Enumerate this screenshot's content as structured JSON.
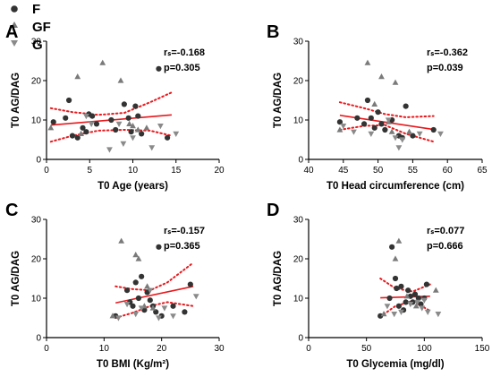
{
  "legend": [
    {
      "label": "F",
      "marker": "circle",
      "color": "#333333"
    },
    {
      "label": "GF",
      "marker": "triangle-up",
      "color": "#7a7a7a"
    },
    {
      "label": "G",
      "marker": "triangle-down",
      "color": "#8a8a8a"
    }
  ],
  "colors": {
    "fit_line": "#e8191d",
    "circle": "#333333",
    "triangle_up": "#7a7a7a",
    "triangle_down": "#8a8a8a"
  },
  "chart_data": [
    {
      "panel": "A",
      "type": "scatter",
      "xlabel": "T0 Age (years)",
      "ylabel": "T0 AG/DAG",
      "xlim": [
        0,
        20
      ],
      "ylim": [
        0,
        30
      ],
      "xticks": [
        0,
        5,
        10,
        15,
        20
      ],
      "yticks": [
        0,
        10,
        20,
        30
      ],
      "stat_rs": "rₛ=-0.168",
      "stat_p": "p=0.305",
      "series": [
        {
          "name": "F",
          "marker": "circle",
          "points": [
            [
              0.8,
              9.5
            ],
            [
              2.2,
              10.5
            ],
            [
              2.6,
              15
            ],
            [
              3,
              6
            ],
            [
              3.6,
              5.5
            ],
            [
              4.2,
              8
            ],
            [
              4.6,
              7
            ],
            [
              4.9,
              11.5
            ],
            [
              5.3,
              11
            ],
            [
              5.8,
              9
            ],
            [
              7.5,
              10
            ],
            [
              8,
              7.5
            ],
            [
              9,
              14
            ],
            [
              9.5,
              10.5
            ],
            [
              9.8,
              7
            ],
            [
              10.3,
              13.5
            ],
            [
              10.6,
              11
            ],
            [
              11,
              6.5
            ],
            [
              13,
              23
            ],
            [
              14,
              5.5
            ]
          ]
        },
        {
          "name": "GF",
          "marker": "triangle-up",
          "points": [
            [
              0.5,
              8
            ],
            [
              3.6,
              21
            ],
            [
              4,
              6.5
            ],
            [
              6.5,
              24.5
            ],
            [
              8.6,
              20
            ],
            [
              9.6,
              9
            ],
            [
              10,
              8.5
            ],
            [
              10.6,
              7.5
            ],
            [
              11.6,
              8
            ]
          ]
        },
        {
          "name": "G",
          "marker": "triangle-down",
          "points": [
            [
              4.6,
              11
            ],
            [
              5.2,
              9
            ],
            [
              7.3,
              2.5
            ],
            [
              8.4,
              9
            ],
            [
              8.9,
              4
            ],
            [
              10,
              5.5
            ],
            [
              12.2,
              3
            ],
            [
              13.2,
              8.5
            ],
            [
              15,
              6.5
            ]
          ]
        }
      ],
      "fit": {
        "x": [
          0.5,
          14.5
        ],
        "y": [
          8.7,
          11.3
        ]
      },
      "ci_upper": {
        "x": [
          0.5,
          3,
          6,
          9,
          12,
          14.5
        ],
        "y": [
          13,
          12,
          11.3,
          11.8,
          14.5,
          17
        ]
      },
      "ci_lower": {
        "x": [
          0.5,
          3,
          6,
          9,
          12,
          14.5
        ],
        "y": [
          4.5,
          6,
          7.3,
          7.5,
          7.3,
          6
        ]
      }
    },
    {
      "panel": "B",
      "type": "scatter",
      "xlabel": "T0 Head circumference (cm)",
      "ylabel": "T0 AG/DAG",
      "xlim": [
        40,
        65
      ],
      "ylim": [
        0,
        30
      ],
      "xticks": [
        40,
        45,
        50,
        55,
        60,
        65
      ],
      "yticks": [
        0,
        10,
        20,
        30
      ],
      "stat_rs": "rₛ=-0.362",
      "stat_p": "p=0.039",
      "series": [
        {
          "name": "F",
          "marker": "circle",
          "points": [
            [
              44.5,
              9.5
            ],
            [
              47,
              10.5
            ],
            [
              48,
              9
            ],
            [
              48.5,
              15
            ],
            [
              49,
              10.5
            ],
            [
              49.5,
              8
            ],
            [
              50,
              12
            ],
            [
              50.5,
              9
            ],
            [
              51,
              7.5
            ],
            [
              52,
              10
            ],
            [
              53,
              6
            ],
            [
              53.5,
              5.5
            ],
            [
              54,
              13.5
            ],
            [
              55,
              6
            ],
            [
              58,
              7.5
            ]
          ]
        },
        {
          "name": "GF",
          "marker": "triangle-up",
          "points": [
            [
              44.5,
              7.5
            ],
            [
              48.5,
              24.5
            ],
            [
              49.5,
              14
            ],
            [
              50.5,
              21
            ],
            [
              51.5,
              9.5
            ],
            [
              52,
              7
            ],
            [
              52.5,
              19.5
            ],
            [
              54.5,
              7
            ]
          ]
        },
        {
          "name": "G",
          "marker": "triangle-down",
          "points": [
            [
              45,
              8.5
            ],
            [
              46.5,
              7
            ],
            [
              49,
              6.5
            ],
            [
              51.5,
              10
            ],
            [
              52.5,
              5.5
            ],
            [
              53,
              3
            ],
            [
              53.5,
              5
            ],
            [
              56,
              6.5
            ],
            [
              59,
              6.5
            ]
          ]
        }
      ],
      "fit": {
        "x": [
          44.5,
          58
        ],
        "y": [
          11.2,
          7.6
        ]
      },
      "ci_upper": {
        "x": [
          44.5,
          48,
          51,
          54,
          58
        ],
        "y": [
          14.5,
          13,
          11.5,
          10.7,
          11
        ]
      },
      "ci_lower": {
        "x": [
          44.5,
          48,
          51,
          54,
          58
        ],
        "y": [
          7.5,
          8.5,
          8.7,
          6.5,
          4.5
        ]
      }
    },
    {
      "panel": "C",
      "type": "scatter",
      "xlabel": "T0 BMI (Kg/m²)",
      "ylabel": "T0 AG/DAG",
      "xlim": [
        0,
        30
      ],
      "ylim": [
        0,
        30
      ],
      "xticks": [
        0,
        10,
        20,
        30
      ],
      "yticks": [
        0,
        10,
        20,
        30
      ],
      "stat_rs": "rₛ=-0.157",
      "stat_p": "p=0.365",
      "series": [
        {
          "name": "F",
          "marker": "circle",
          "points": [
            [
              12,
              5.5
            ],
            [
              14,
              12
            ],
            [
              14.5,
              9
            ],
            [
              15,
              8
            ],
            [
              15.5,
              14
            ],
            [
              16,
              10
            ],
            [
              16.5,
              15.5
            ],
            [
              17,
              7
            ],
            [
              17.5,
              11.5
            ],
            [
              18,
              9.5
            ],
            [
              18.5,
              8
            ],
            [
              19,
              6.5
            ],
            [
              19.5,
              23
            ],
            [
              20,
              5.5
            ],
            [
              22,
              8
            ],
            [
              24,
              6.5
            ],
            [
              25,
              13.5
            ]
          ]
        },
        {
          "name": "GF",
          "marker": "triangle-up",
          "points": [
            [
              11.5,
              5.5
            ],
            [
              13,
              24.5
            ],
            [
              15.5,
              21
            ],
            [
              16,
              20
            ],
            [
              17,
              8
            ],
            [
              17.5,
              13
            ],
            [
              18.5,
              7.5
            ]
          ]
        },
        {
          "name": "G",
          "marker": "triangle-down",
          "points": [
            [
              12.5,
              5
            ],
            [
              14,
              8.5
            ],
            [
              15.5,
              6
            ],
            [
              16.5,
              7.5
            ],
            [
              18,
              12
            ],
            [
              19.5,
              5
            ],
            [
              20.5,
              7.5
            ],
            [
              22,
              5.5
            ],
            [
              26,
              10.5
            ]
          ]
        }
      ],
      "fit": {
        "x": [
          12,
          25.5
        ],
        "y": [
          8.8,
          13
        ]
      },
      "ci_upper": {
        "x": [
          12,
          15,
          18,
          21,
          25.5
        ],
        "y": [
          13,
          12.3,
          12,
          14,
          19
        ]
      },
      "ci_lower": {
        "x": [
          12,
          15,
          18,
          21,
          25.5
        ],
        "y": [
          5,
          6.3,
          8,
          9,
          8
        ]
      }
    },
    {
      "panel": "D",
      "type": "scatter",
      "xlabel": "T0 Glycemia (mg/dl)",
      "ylabel": "T0 AG/DAG",
      "xlim": [
        0,
        150
      ],
      "ylim": [
        0,
        30
      ],
      "xticks": [
        0,
        50,
        100,
        150
      ],
      "yticks": [
        0,
        10,
        20,
        30
      ],
      "stat_rs": "rₛ=0.077",
      "stat_p": "p=0.666",
      "series": [
        {
          "name": "F",
          "marker": "circle",
          "points": [
            [
              62,
              5.5
            ],
            [
              70,
              10
            ],
            [
              72,
              23
            ],
            [
              75,
              15
            ],
            [
              76,
              12.5
            ],
            [
              78,
              8
            ],
            [
              80,
              13
            ],
            [
              82,
              7
            ],
            [
              84,
              9
            ],
            [
              86,
              12
            ],
            [
              88,
              10.5
            ],
            [
              90,
              9
            ],
            [
              92,
              11
            ],
            [
              95,
              10
            ],
            [
              97,
              8.5
            ],
            [
              100,
              10
            ],
            [
              102,
              13.5
            ]
          ]
        },
        {
          "name": "GF",
          "marker": "triangle-up",
          "points": [
            [
              65,
              6
            ],
            [
              75,
              20
            ],
            [
              78,
              24.5
            ],
            [
              85,
              10.5
            ],
            [
              93,
              8
            ],
            [
              110,
              12
            ]
          ]
        },
        {
          "name": "G",
          "marker": "triangle-down",
          "points": [
            [
              68,
              8
            ],
            [
              74,
              6
            ],
            [
              80,
              6.5
            ],
            [
              88,
              8.5
            ],
            [
              94,
              9
            ],
            [
              98,
              7.5
            ],
            [
              100,
              9.5
            ],
            [
              103,
              6.5
            ],
            [
              112,
              6
            ]
          ]
        }
      ],
      "fit": {
        "x": [
          62,
          105
        ],
        "y": [
          10.1,
          10.5
        ]
      },
      "ci_upper": {
        "x": [
          62,
          75,
          90,
          105
        ],
        "y": [
          15,
          12.5,
          11.7,
          13.5
        ]
      },
      "ci_lower": {
        "x": [
          62,
          75,
          90,
          105
        ],
        "y": [
          5.3,
          8,
          9.3,
          6.8
        ]
      }
    }
  ]
}
